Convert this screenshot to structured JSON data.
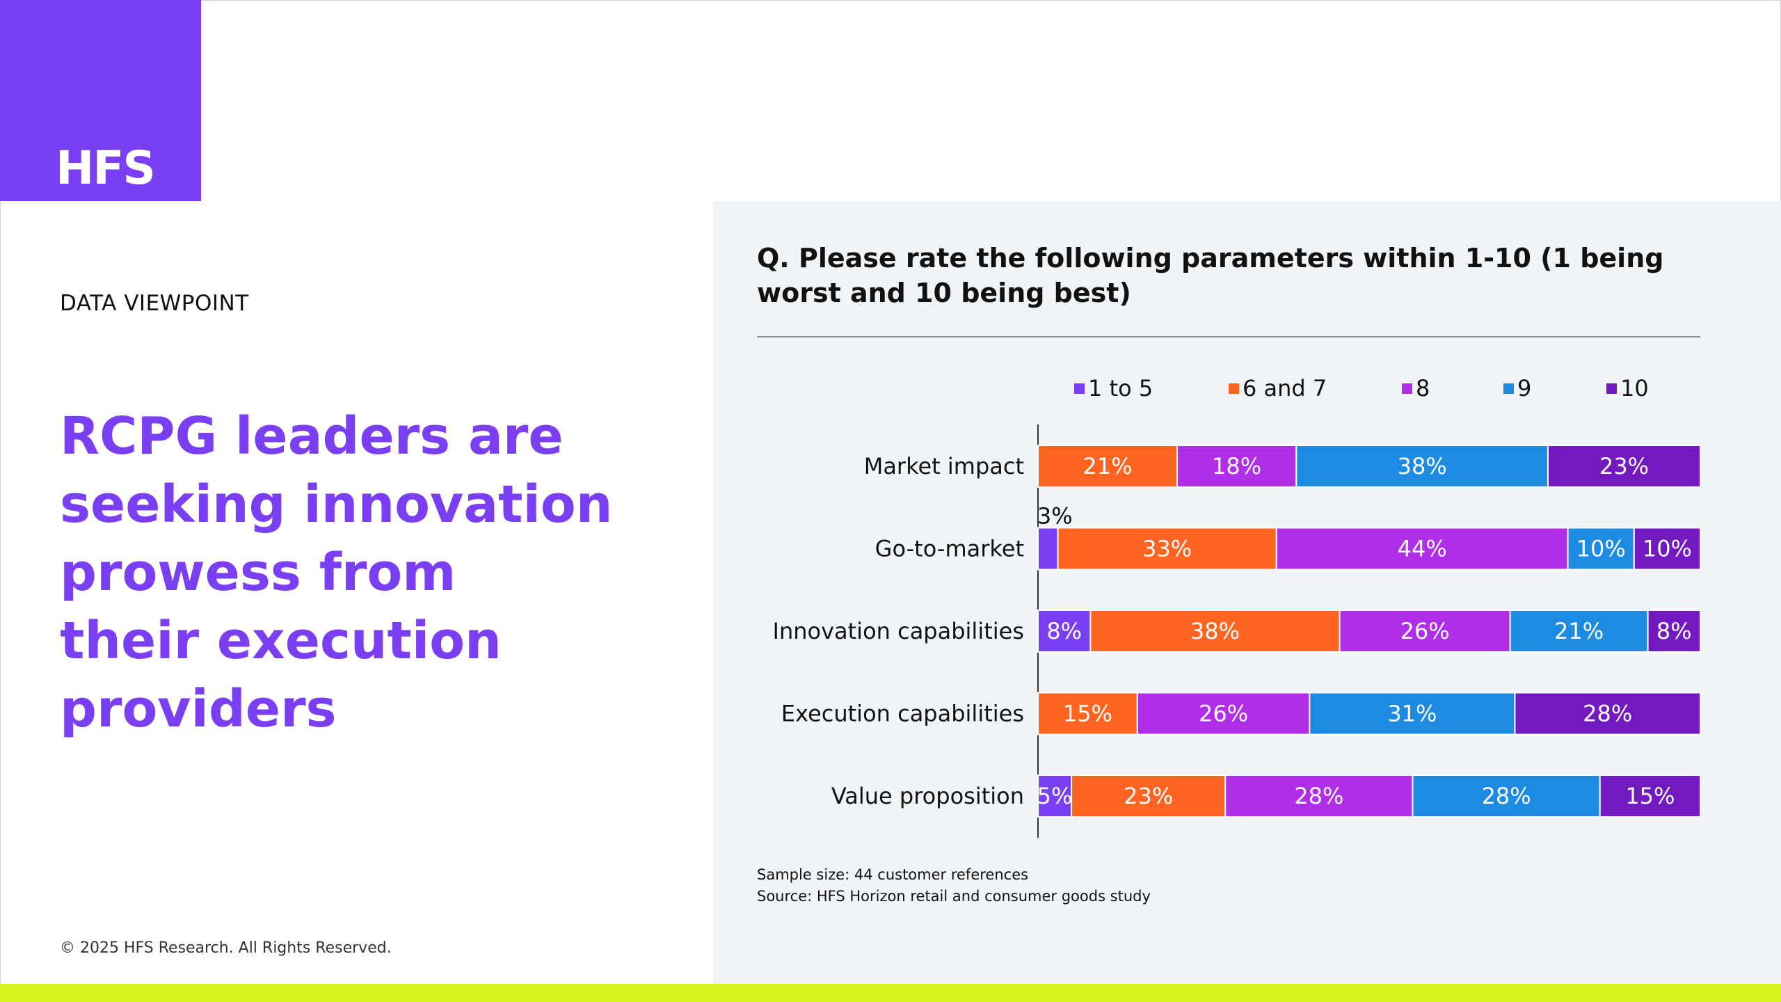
{
  "brand": {
    "logo_text": "HFS",
    "purple": "#7a3ff2",
    "accent_bar": "#d7f41c"
  },
  "eyebrow": "DATA VIEWPOINT",
  "headline_lines": [
    "RCPG leaders are",
    "seeking innovation",
    "prowess from",
    "their execution",
    "providers"
  ],
  "copyright": "© 2025 HFS Research. All Rights Reserved.",
  "notes": {
    "sample": "Sample size: 44 customer references",
    "source": "Source: HFS Horizon retail and consumer goods study"
  },
  "chart_data": {
    "type": "bar",
    "orientation": "horizontal",
    "stacked": true,
    "title": "Q. Please rate the following parameters within 1-10 (1 being worst and 10 being best)",
    "categories": [
      "Market impact",
      "Go-to-market",
      "Innovation capabilities",
      "Execution capabilities",
      "Value proposition"
    ],
    "series": [
      {
        "name": "1 to 5",
        "color": "#7a3ff2",
        "values": [
          0,
          3,
          8,
          0,
          5
        ]
      },
      {
        "name": "6 and 7",
        "color": "#ff6420",
        "values": [
          21,
          33,
          38,
          15,
          23
        ]
      },
      {
        "name": "8",
        "color": "#b02ee8",
        "values": [
          18,
          44,
          26,
          26,
          28
        ]
      },
      {
        "name": "9",
        "color": "#1e8be3",
        "values": [
          38,
          10,
          21,
          31,
          28
        ]
      },
      {
        "name": "10",
        "color": "#7219c0",
        "values": [
          23,
          10,
          8,
          28,
          15
        ]
      }
    ],
    "value_suffix": "%",
    "legend_position": "top",
    "grid": false
  }
}
